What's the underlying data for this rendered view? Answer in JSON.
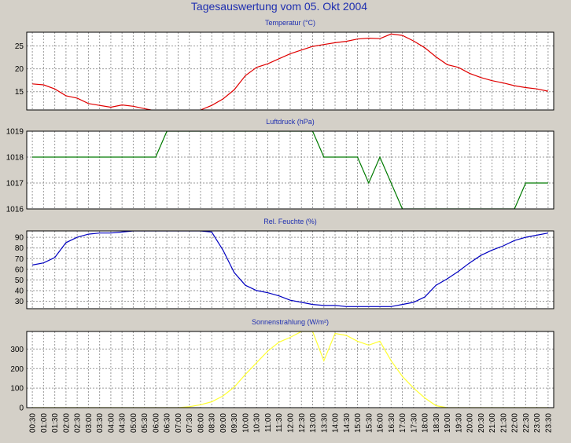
{
  "title": "Tagesauswertung vom 05. Okt 2004",
  "colors": {
    "background": "#d4d0c8",
    "plot": "#ffffff",
    "grid": "#9a9a9a",
    "title": "#1f2fb0"
  },
  "x_labels": [
    "00:30",
    "01:00",
    "01:30",
    "02:00",
    "02:30",
    "03:00",
    "03:30",
    "04:00",
    "04:30",
    "05:00",
    "05:30",
    "06:00",
    "06:30",
    "07:00",
    "07:30",
    "08:00",
    "08:30",
    "09:00",
    "09:30",
    "10:00",
    "10:30",
    "11:00",
    "11:30",
    "12:00",
    "12:30",
    "13:00",
    "13:30",
    "14:00",
    "14:30",
    "15:00",
    "15:30",
    "16:00",
    "16:30",
    "17:00",
    "17:30",
    "18:00",
    "18:30",
    "19:00",
    "19:30",
    "20:00",
    "20:30",
    "21:00",
    "21:30",
    "22:00",
    "22:30",
    "23:00",
    "23:30"
  ],
  "chart_data": [
    {
      "type": "line",
      "title": "Temperatur (°C)",
      "color": "#e00000",
      "grid": true,
      "ylim": [
        11,
        28
      ],
      "yticks": [
        15,
        20,
        25
      ],
      "x": [
        "00:30",
        "01:00",
        "01:30",
        "02:00",
        "02:30",
        "03:00",
        "03:30",
        "04:00",
        "04:30",
        "05:00",
        "05:30",
        "06:00",
        "06:30",
        "07:00",
        "07:30",
        "08:00",
        "08:30",
        "09:00",
        "09:30",
        "10:00",
        "10:30",
        "11:00",
        "11:30",
        "12:00",
        "12:30",
        "13:00",
        "13:30",
        "14:00",
        "14:30",
        "15:00",
        "15:30",
        "16:00",
        "16:30",
        "17:00",
        "17:30",
        "18:00",
        "18:30",
        "19:00",
        "19:30",
        "20:00",
        "20:30",
        "21:00",
        "21:30",
        "22:00",
        "22:30",
        "23:00",
        "23:30"
      ],
      "values": [
        16.7,
        16.5,
        15.6,
        14.1,
        13.6,
        12.4,
        12.0,
        11.6,
        12.1,
        11.8,
        11.3,
        10.8,
        10.5,
        10.5,
        10.6,
        11.0,
        12.0,
        13.4,
        15.4,
        18.5,
        20.3,
        21.1,
        22.2,
        23.3,
        24.1,
        24.9,
        25.3,
        25.7,
        26.0,
        26.5,
        26.7,
        26.6,
        27.6,
        27.3,
        26.1,
        24.6,
        22.6,
        20.9,
        20.3,
        19.0,
        18.1,
        17.4,
        16.9,
        16.3,
        15.9,
        15.6,
        15.1
      ]
    },
    {
      "type": "line",
      "title": "Luftdruck (hPa)",
      "color": "#007a00",
      "grid": true,
      "ylim": [
        1016,
        1019
      ],
      "yticks": [
        1016,
        1017,
        1018,
        1019
      ],
      "x": [
        "00:30",
        "01:00",
        "01:30",
        "02:00",
        "02:30",
        "03:00",
        "03:30",
        "04:00",
        "04:30",
        "05:00",
        "05:30",
        "06:00",
        "06:30",
        "07:00",
        "07:30",
        "08:00",
        "08:30",
        "09:00",
        "09:30",
        "10:00",
        "10:30",
        "11:00",
        "11:30",
        "12:00",
        "12:30",
        "13:00",
        "13:30",
        "14:00",
        "14:30",
        "15:00",
        "15:30",
        "16:00",
        "16:30",
        "17:00",
        "17:30",
        "18:00",
        "18:30",
        "19:00",
        "19:30",
        "20:00",
        "20:30",
        "21:00",
        "21:30",
        "22:00",
        "22:30",
        "23:00",
        "23:30"
      ],
      "values": [
        1018,
        1018,
        1018,
        1018,
        1018,
        1018,
        1018,
        1018,
        1018,
        1018,
        1018,
        1018,
        1019,
        1019,
        1019,
        1019,
        1019,
        1019,
        1019,
        1019,
        1019,
        1019,
        1019,
        1019,
        1019,
        1019,
        1018,
        1018,
        1018,
        1018,
        1017,
        1018,
        1017,
        1016,
        1016,
        1016,
        1016,
        1016,
        1016,
        1016,
        1016,
        1016,
        1016,
        1016,
        1017,
        1017,
        1017
      ]
    },
    {
      "type": "line",
      "title": "Rel. Feuchte (%)",
      "color": "#0000c0",
      "grid": true,
      "ylim": [
        23,
        96
      ],
      "yticks": [
        30,
        40,
        50,
        60,
        70,
        80,
        90
      ],
      "x": [
        "00:30",
        "01:00",
        "01:30",
        "02:00",
        "02:30",
        "03:00",
        "03:30",
        "04:00",
        "04:30",
        "05:00",
        "05:30",
        "06:00",
        "06:30",
        "07:00",
        "07:30",
        "08:00",
        "08:30",
        "09:00",
        "09:30",
        "10:00",
        "10:30",
        "11:00",
        "11:30",
        "12:00",
        "12:30",
        "13:00",
        "13:30",
        "14:00",
        "14:30",
        "15:00",
        "15:30",
        "16:00",
        "16:30",
        "17:00",
        "17:30",
        "18:00",
        "18:30",
        "19:00",
        "19:30",
        "20:00",
        "20:30",
        "21:00",
        "21:30",
        "22:00",
        "22:30",
        "23:00",
        "23:30"
      ],
      "values": [
        64,
        66,
        71,
        85,
        90,
        93,
        94,
        94,
        95,
        96,
        96,
        96,
        96,
        96,
        96,
        96,
        95,
        78,
        57,
        45,
        40,
        38,
        35,
        31,
        29,
        27,
        26,
        26,
        25,
        25,
        25,
        25,
        25,
        27,
        29,
        34,
        45,
        51,
        58,
        66,
        73,
        78,
        82,
        87,
        90,
        92,
        94
      ]
    },
    {
      "type": "line",
      "title": "Sonnenstrahlung (W/m²)",
      "color": "#ffff33",
      "grid": true,
      "ylim": [
        0,
        390
      ],
      "yticks": [
        0,
        100,
        200,
        300
      ],
      "x": [
        "00:30",
        "01:00",
        "01:30",
        "02:00",
        "02:30",
        "03:00",
        "03:30",
        "04:00",
        "04:30",
        "05:00",
        "05:30",
        "06:00",
        "06:30",
        "07:00",
        "07:30",
        "08:00",
        "08:30",
        "09:00",
        "09:30",
        "10:00",
        "10:30",
        "11:00",
        "11:30",
        "12:00",
        "12:30",
        "13:00",
        "13:30",
        "14:00",
        "14:30",
        "15:00",
        "15:30",
        "16:00",
        "16:30",
        "17:00",
        "17:30",
        "18:00",
        "18:30",
        "19:00",
        "19:30",
        "20:00",
        "20:30",
        "21:00",
        "21:30",
        "22:00",
        "22:30",
        "23:00",
        "23:30"
      ],
      "values": [
        0,
        0,
        0,
        0,
        0,
        0,
        0,
        0,
        0,
        0,
        0,
        0,
        0,
        0,
        5,
        15,
        30,
        60,
        105,
        170,
        230,
        290,
        335,
        360,
        390,
        390,
        240,
        380,
        370,
        340,
        320,
        340,
        240,
        160,
        100,
        50,
        10,
        0,
        0,
        0,
        0,
        0,
        0,
        0,
        0,
        0,
        0
      ]
    }
  ]
}
